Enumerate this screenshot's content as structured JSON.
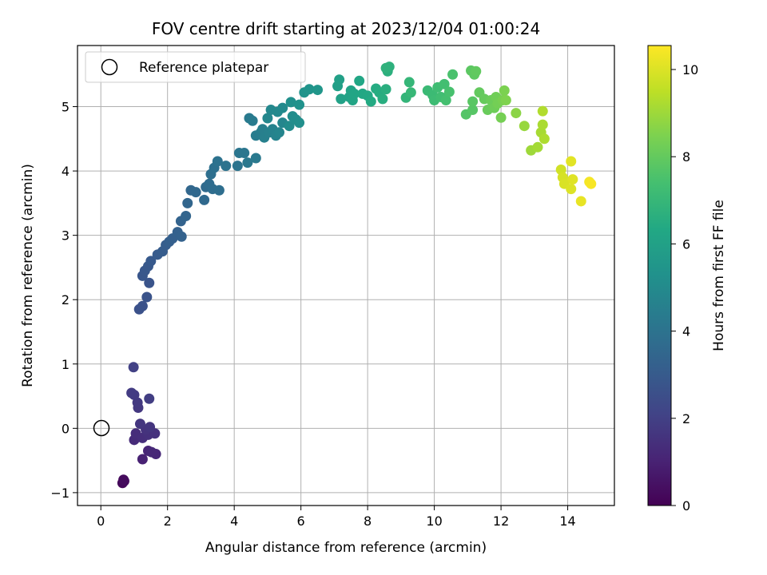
{
  "chart_data": {
    "type": "scatter",
    "title": "FOV centre drift starting at 2023/12/04 01:00:24",
    "xlabel": "Angular distance from reference (arcmin)",
    "ylabel": "Rotation from reference (arcmin)",
    "xlim": [
      -0.7,
      15.4
    ],
    "ylim": [
      -1.2,
      5.95
    ],
    "xticks": [
      0,
      2,
      4,
      6,
      8,
      10,
      12,
      14
    ],
    "yticks": [
      -1,
      0,
      1,
      2,
      3,
      4,
      5
    ],
    "xtick_labels": [
      "0",
      "2",
      "4",
      "6",
      "8",
      "10",
      "12",
      "14"
    ],
    "ytick_labels": [
      "−1",
      "0",
      "1",
      "2",
      "3",
      "4",
      "5"
    ],
    "grid": true,
    "legend": {
      "position": "top-left",
      "entries": [
        {
          "label": "Reference platepar",
          "marker": "open-circle"
        }
      ]
    },
    "reference_point": {
      "x": 0,
      "y": 0
    },
    "colorbar": {
      "label": "Hours from first FF file",
      "range": [
        0,
        10.55
      ],
      "ticks": [
        0,
        2,
        4,
        6,
        8,
        10
      ],
      "tick_labels": [
        "0",
        "2",
        "4",
        "6",
        "8",
        "10"
      ],
      "colormap": "viridis"
    },
    "points": [
      [
        0.65,
        -0.85,
        0.2
      ],
      [
        0.7,
        -0.82,
        0.25
      ],
      [
        0.68,
        -0.8,
        0.3
      ],
      [
        1.25,
        -0.48,
        1.0
      ],
      [
        1.42,
        -0.35,
        1.1
      ],
      [
        1.65,
        -0.4,
        1.15
      ],
      [
        1.52,
        -0.37,
        1.2
      ],
      [
        1.0,
        -0.18,
        1.3
      ],
      [
        1.05,
        -0.08,
        1.35
      ],
      [
        1.25,
        -0.15,
        1.4
      ],
      [
        1.42,
        -0.1,
        1.45
      ],
      [
        1.62,
        -0.08,
        1.5
      ],
      [
        1.35,
        -0.02,
        1.55
      ],
      [
        1.47,
        0.02,
        1.6
      ],
      [
        1.18,
        0.07,
        1.65
      ],
      [
        1.12,
        0.32,
        1.7
      ],
      [
        1.1,
        0.4,
        1.75
      ],
      [
        1.0,
        0.52,
        1.8
      ],
      [
        0.92,
        0.55,
        1.85
      ],
      [
        1.45,
        0.46,
        1.9
      ],
      [
        0.98,
        0.95,
        2.0
      ],
      [
        1.15,
        1.85,
        2.6
      ],
      [
        1.25,
        1.9,
        2.65
      ],
      [
        1.38,
        2.04,
        2.7
      ],
      [
        1.45,
        2.26,
        2.75
      ],
      [
        1.25,
        2.37,
        2.8
      ],
      [
        1.32,
        2.45,
        2.85
      ],
      [
        1.42,
        2.52,
        2.9
      ],
      [
        1.5,
        2.6,
        2.95
      ],
      [
        1.7,
        2.7,
        3.0
      ],
      [
        1.85,
        2.75,
        3.05
      ],
      [
        1.95,
        2.85,
        3.1
      ],
      [
        2.05,
        2.9,
        3.15
      ],
      [
        2.15,
        2.95,
        3.2
      ],
      [
        2.3,
        3.05,
        3.25
      ],
      [
        2.42,
        2.98,
        3.3
      ],
      [
        2.4,
        3.22,
        3.35
      ],
      [
        2.55,
        3.3,
        3.4
      ],
      [
        2.6,
        3.5,
        3.45
      ],
      [
        2.7,
        3.7,
        3.5
      ],
      [
        2.85,
        3.67,
        3.55
      ],
      [
        3.1,
        3.55,
        3.6
      ],
      [
        3.15,
        3.75,
        3.65
      ],
      [
        3.25,
        3.8,
        3.7
      ],
      [
        3.35,
        3.72,
        3.75
      ],
      [
        3.55,
        3.7,
        3.8
      ],
      [
        3.3,
        3.95,
        3.85
      ],
      [
        3.4,
        4.05,
        3.9
      ],
      [
        3.5,
        4.15,
        3.95
      ],
      [
        3.75,
        4.08,
        4.0
      ],
      [
        4.1,
        4.08,
        4.05
      ],
      [
        4.15,
        4.28,
        4.1
      ],
      [
        4.3,
        4.28,
        4.15
      ],
      [
        4.4,
        4.13,
        4.2
      ],
      [
        4.65,
        4.2,
        4.25
      ],
      [
        4.45,
        4.82,
        4.3
      ],
      [
        4.55,
        4.78,
        4.35
      ],
      [
        4.65,
        4.55,
        4.4
      ],
      [
        4.8,
        4.6,
        4.45
      ],
      [
        4.85,
        4.65,
        4.5
      ],
      [
        4.9,
        4.52,
        4.55
      ],
      [
        5.05,
        4.6,
        4.6
      ],
      [
        5.15,
        4.65,
        4.65
      ],
      [
        5.25,
        4.55,
        4.7
      ],
      [
        5.35,
        4.6,
        4.75
      ],
      [
        5.45,
        4.75,
        4.8
      ],
      [
        5.0,
        4.82,
        4.85
      ],
      [
        5.1,
        4.95,
        4.9
      ],
      [
        5.3,
        4.92,
        4.95
      ],
      [
        5.45,
        4.98,
        5.0
      ],
      [
        5.65,
        4.7,
        5.05
      ],
      [
        5.75,
        4.85,
        5.1
      ],
      [
        5.85,
        4.8,
        5.15
      ],
      [
        5.95,
        4.75,
        5.2
      ],
      [
        5.7,
        5.07,
        5.25
      ],
      [
        5.95,
        5.03,
        5.3
      ],
      [
        6.1,
        5.22,
        5.35
      ],
      [
        6.25,
        5.27,
        5.4
      ],
      [
        6.5,
        5.26,
        5.5
      ],
      [
        7.1,
        5.32,
        5.9
      ],
      [
        7.15,
        5.42,
        5.95
      ],
      [
        7.2,
        5.12,
        6.0
      ],
      [
        7.45,
        5.15,
        6.05
      ],
      [
        7.5,
        5.25,
        6.1
      ],
      [
        7.55,
        5.1,
        6.15
      ],
      [
        7.6,
        5.2,
        6.2
      ],
      [
        7.75,
        5.4,
        6.25
      ],
      [
        7.85,
        5.2,
        6.3
      ],
      [
        8.0,
        5.17,
        6.35
      ],
      [
        8.1,
        5.08,
        6.4
      ],
      [
        8.25,
        5.28,
        6.45
      ],
      [
        8.35,
        5.22,
        6.5
      ],
      [
        8.45,
        5.12,
        6.55
      ],
      [
        8.55,
        5.27,
        6.6
      ],
      [
        8.6,
        5.55,
        6.65
      ],
      [
        8.65,
        5.62,
        6.7
      ],
      [
        8.55,
        5.6,
        6.75
      ],
      [
        9.15,
        5.14,
        6.9
      ],
      [
        9.25,
        5.38,
        6.95
      ],
      [
        9.3,
        5.22,
        7.0
      ],
      [
        9.8,
        5.25,
        7.1
      ],
      [
        9.95,
        5.18,
        7.15
      ],
      [
        10.0,
        5.1,
        7.2
      ],
      [
        10.1,
        5.3,
        7.25
      ],
      [
        10.2,
        5.15,
        7.3
      ],
      [
        10.3,
        5.35,
        7.35
      ],
      [
        10.35,
        5.1,
        7.4
      ],
      [
        10.45,
        5.23,
        7.45
      ],
      [
        10.55,
        5.5,
        7.5
      ],
      [
        10.95,
        4.88,
        7.7
      ],
      [
        11.15,
        4.95,
        7.75
      ],
      [
        11.15,
        5.08,
        7.8
      ],
      [
        11.1,
        5.56,
        7.85
      ],
      [
        11.2,
        5.5,
        7.9
      ],
      [
        11.25,
        5.55,
        7.95
      ],
      [
        11.35,
        5.22,
        8.0
      ],
      [
        11.5,
        5.12,
        8.05
      ],
      [
        11.6,
        4.95,
        8.1
      ],
      [
        11.7,
        5.1,
        8.15
      ],
      [
        11.8,
        4.98,
        8.2
      ],
      [
        11.85,
        5.15,
        8.25
      ],
      [
        11.9,
        5.05,
        8.3
      ],
      [
        12.0,
        4.83,
        8.35
      ],
      [
        12.05,
        5.1,
        8.4
      ],
      [
        12.1,
        5.25,
        8.45
      ],
      [
        12.15,
        5.1,
        8.5
      ],
      [
        12.45,
        4.9,
        8.7
      ],
      [
        12.7,
        4.7,
        8.9
      ],
      [
        12.9,
        4.32,
        9.0
      ],
      [
        13.1,
        4.37,
        9.1
      ],
      [
        13.2,
        4.6,
        9.15
      ],
      [
        13.25,
        4.72,
        9.2
      ],
      [
        13.3,
        4.5,
        9.25
      ],
      [
        13.25,
        4.93,
        9.3
      ],
      [
        13.8,
        4.02,
        9.8
      ],
      [
        13.85,
        3.9,
        9.9
      ],
      [
        13.9,
        3.8,
        9.95
      ],
      [
        14.1,
        3.72,
        10.0
      ],
      [
        14.15,
        3.87,
        10.05
      ],
      [
        14.1,
        4.15,
        10.1
      ],
      [
        14.4,
        3.53,
        10.2
      ],
      [
        14.65,
        3.83,
        10.4
      ],
      [
        14.7,
        3.8,
        10.45
      ]
    ]
  }
}
